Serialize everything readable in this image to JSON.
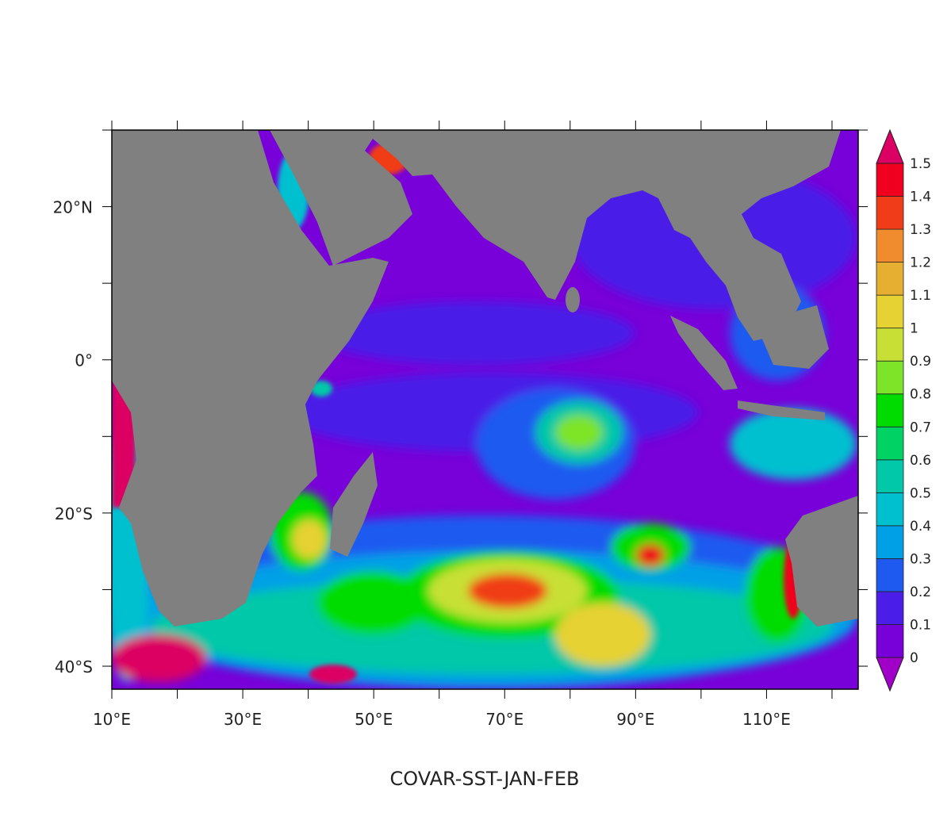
{
  "title": "COVAR-SST-JAN-FEB",
  "map": {
    "lon_range": [
      10,
      124
    ],
    "lat_range": [
      -43,
      30
    ],
    "land_color": "#808080",
    "x_ticks": [
      {
        "value": 10,
        "label": "10°E"
      },
      {
        "value": 20,
        "label": ""
      },
      {
        "value": 30,
        "label": "30°E"
      },
      {
        "value": 40,
        "label": ""
      },
      {
        "value": 50,
        "label": "50°E"
      },
      {
        "value": 60,
        "label": ""
      },
      {
        "value": 70,
        "label": "70°E"
      },
      {
        "value": 80,
        "label": ""
      },
      {
        "value": 90,
        "label": "90°E"
      },
      {
        "value": 100,
        "label": ""
      },
      {
        "value": 110,
        "label": "110°E"
      },
      {
        "value": 120,
        "label": ""
      }
    ],
    "y_ticks": [
      {
        "value": 30,
        "label": ""
      },
      {
        "value": 20,
        "label": "20°N"
      },
      {
        "value": 10,
        "label": ""
      },
      {
        "value": 0,
        "label": "0°"
      },
      {
        "value": -10,
        "label": ""
      },
      {
        "value": -20,
        "label": "20°S"
      },
      {
        "value": -30,
        "label": ""
      },
      {
        "value": -40,
        "label": "40°S"
      }
    ]
  },
  "colorbar": {
    "labels": [
      "0",
      "0.1",
      "0.2",
      "0.3",
      "0.4",
      "0.5",
      "0.6",
      "0.7",
      "0.8",
      "0.9",
      "1",
      "1.1",
      "1.2",
      "1.3",
      "1.4",
      "1.5"
    ],
    "under_color": "#a000c8",
    "over_color": "#dc0064",
    "colors": [
      "#7800d8",
      "#4a1ee8",
      "#1e5af0",
      "#00a0e6",
      "#00c0d0",
      "#00c8a8",
      "#00d264",
      "#00dc00",
      "#7de428",
      "#c8e036",
      "#e6d232",
      "#e6af32",
      "#f08c2d",
      "#f03c19",
      "#f0001e"
    ]
  }
}
